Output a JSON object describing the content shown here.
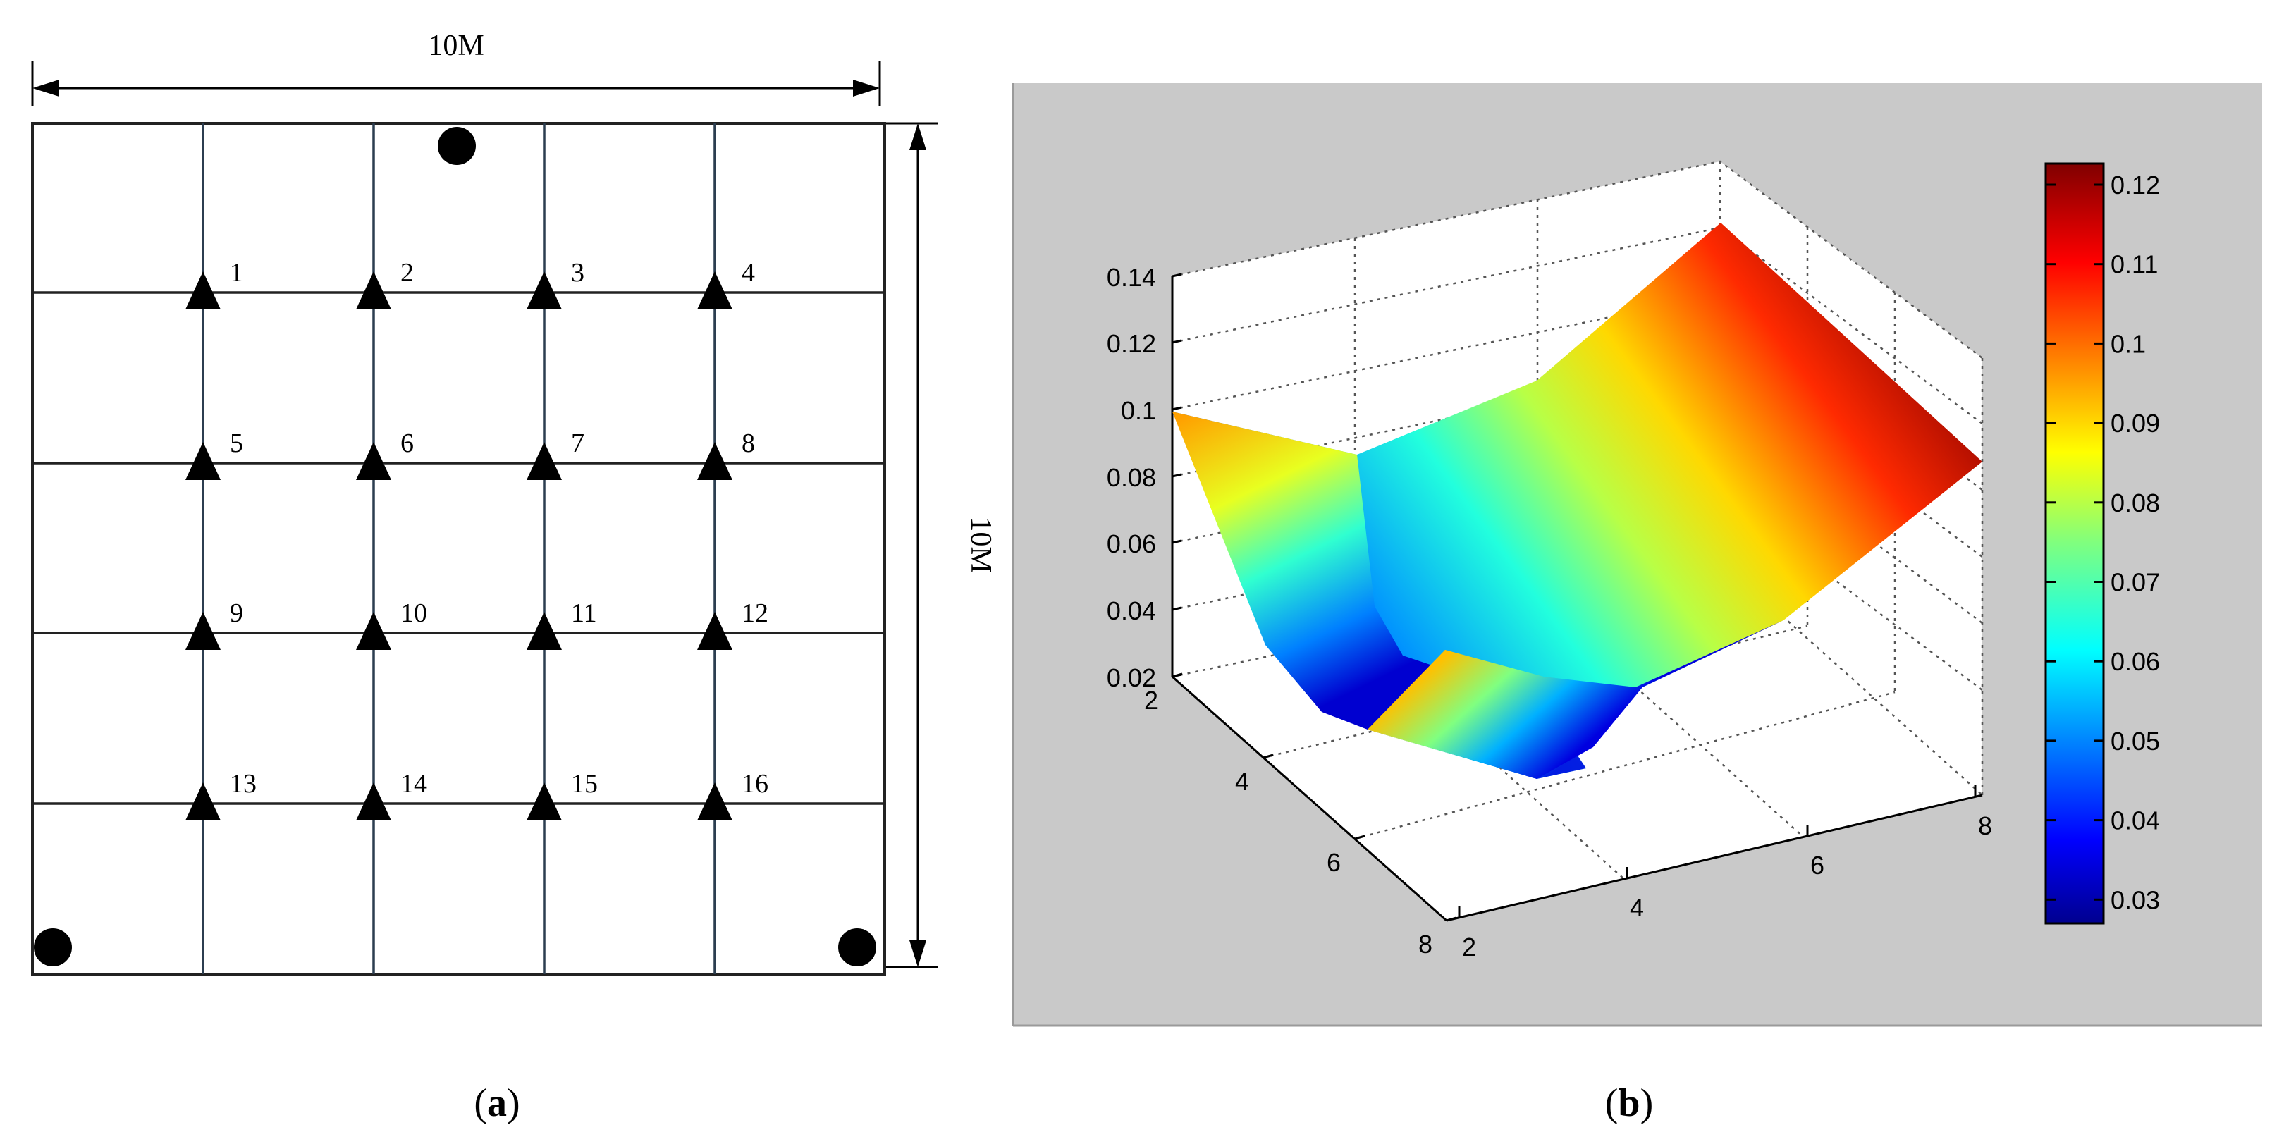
{
  "panel_a": {
    "width_label": "10M",
    "height_label": "10M",
    "sensors": [
      "1",
      "2",
      "3",
      "4",
      "5",
      "6",
      "7",
      "8",
      "9",
      "10",
      "11",
      "12",
      "13",
      "14",
      "15",
      "16"
    ],
    "markers": [
      "source-top",
      "source-bottom-left",
      "source-bottom-right"
    ],
    "caption_paren_open": "(",
    "caption_letter": "a",
    "caption_paren_close": ")"
  },
  "panel_b": {
    "z_ticks": [
      "0.14",
      "0.12",
      "0.1",
      "0.08",
      "0.06",
      "0.04",
      "0.02"
    ],
    "left_axis_ticks": [
      "2",
      "4",
      "6",
      "8"
    ],
    "right_axis_ticks": [
      "2",
      "4",
      "6",
      "8"
    ],
    "colorbar_ticks": [
      "0.12",
      "0.11",
      "0.1",
      "0.09",
      "0.08",
      "0.07",
      "0.06",
      "0.05",
      "0.04",
      "0.03"
    ],
    "colormap": "jet",
    "background_color": "#c8c8c8",
    "caption_paren_open": "(",
    "caption_letter": "b",
    "caption_paren_close": ")"
  },
  "chart_data": {
    "type": "surface",
    "colormap": "jet",
    "zlim": [
      0.02,
      0.14
    ],
    "colorbar_range": [
      0.028,
      0.123
    ],
    "grid": true,
    "surface_corners_z": {
      "back-left": 0.1,
      "back-right": 0.123,
      "front-right": 0.09,
      "front-left": 0.028
    }
  }
}
